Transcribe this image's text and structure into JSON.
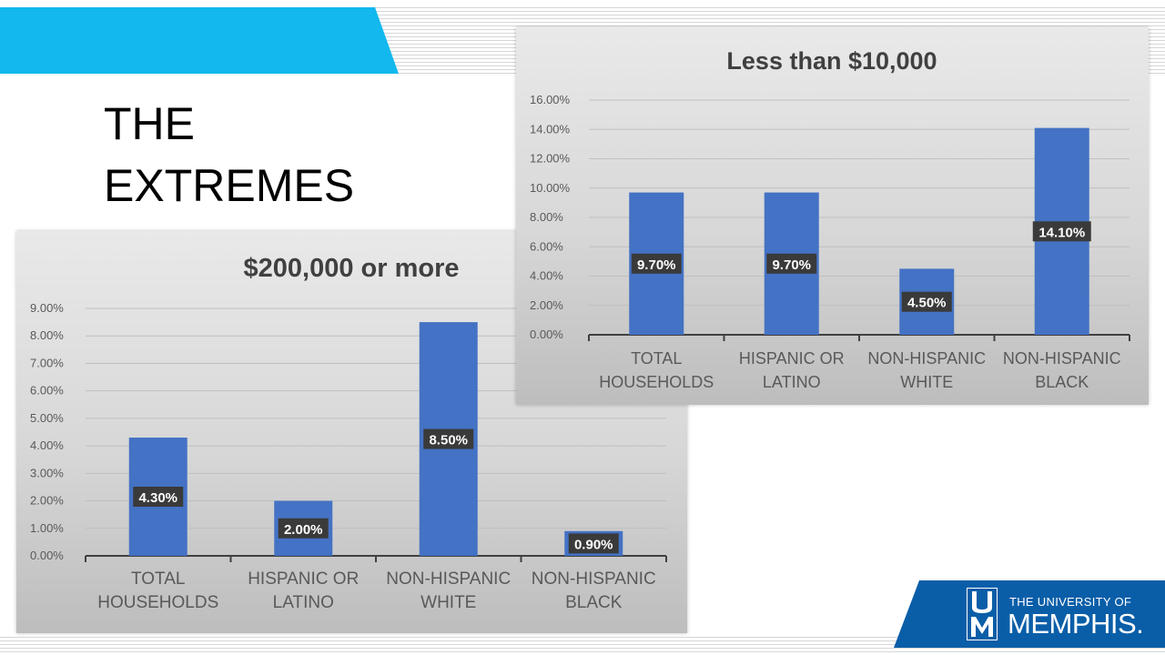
{
  "slide": {
    "title_line1": "THE",
    "title_line2": "EXTREMES"
  },
  "colors": {
    "accent": "#12b8ee",
    "bar": "#4472c4",
    "label_bg": "#3a3a3a",
    "brand": "#0a5ea8"
  },
  "logo": {
    "line1": "THE UNIVERSITY OF",
    "line2": "MEMPHIS."
  },
  "chart_data": [
    {
      "type": "bar",
      "title": "Less than $10,000",
      "categories": [
        [
          "TOTAL",
          "HOUSEHOLDS"
        ],
        [
          "HISPANIC OR",
          "LATINO"
        ],
        [
          "NON-HISPANIC",
          "WHITE"
        ],
        [
          "NON-HISPANIC",
          "BLACK"
        ]
      ],
      "values": [
        9.7,
        9.7,
        4.5,
        14.1
      ],
      "labels": [
        "9.70%",
        "9.70%",
        "4.50%",
        "14.10%"
      ],
      "ylim": [
        0,
        16
      ],
      "yticks": [
        "0.00%",
        "2.00%",
        "4.00%",
        "6.00%",
        "8.00%",
        "10.00%",
        "12.00%",
        "14.00%",
        "16.00%"
      ],
      "grid": true
    },
    {
      "type": "bar",
      "title": "$200,000 or more",
      "categories": [
        [
          "TOTAL",
          "HOUSEHOLDS"
        ],
        [
          "HISPANIC OR",
          "LATINO"
        ],
        [
          "NON-HISPANIC",
          "WHITE"
        ],
        [
          "NON-HISPANIC",
          "BLACK"
        ]
      ],
      "values": [
        4.3,
        2.0,
        8.5,
        0.9
      ],
      "labels": [
        "4.30%",
        "2.00%",
        "8.50%",
        "0.90%"
      ],
      "ylim": [
        0,
        9
      ],
      "yticks": [
        "0.00%",
        "1.00%",
        "2.00%",
        "3.00%",
        "4.00%",
        "5.00%",
        "6.00%",
        "7.00%",
        "8.00%",
        "9.00%"
      ],
      "grid": true
    }
  ]
}
